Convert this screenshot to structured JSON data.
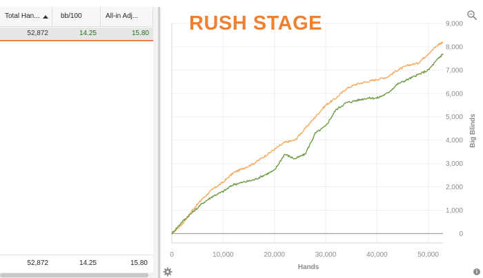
{
  "table": {
    "columns": [
      "Total Han...",
      "bb/100",
      "All-in Adj..."
    ],
    "row": [
      "52,872",
      "14.25",
      "15.80"
    ],
    "footer": [
      "52,872",
      "14.25",
      "15.80"
    ]
  },
  "icons": {
    "sort": "sort-ascending-icon",
    "zoom": "zoom-icon",
    "settings": "gear-icon",
    "info": "info-icon"
  },
  "colors": {
    "accent_orange": "#f08030",
    "line_orange": "#f5a85a",
    "line_green": "#6f9a44",
    "positive_green": "#1f6e1f",
    "row_underline": "#ef7d52"
  },
  "chart_data": {
    "type": "line",
    "title": "RUSH STAGE",
    "xlabel": "Hands",
    "ylabel": "Big Blinds",
    "xlim": [
      0,
      52872
    ],
    "ylim": [
      -400,
      9000
    ],
    "xticks": [
      "0",
      "10,000",
      "20,000",
      "30,000",
      "40,000",
      "50,000"
    ],
    "yticks": [
      "0",
      "1,000",
      "2,000",
      "3,000",
      "4,000",
      "5,000",
      "6,000",
      "7,000",
      "8,000",
      "9,000"
    ],
    "grid": true,
    "y_axis_side": "right",
    "series": [
      {
        "color": "#f5a85a",
        "x": [
          0,
          2000,
          4000,
          6000,
          8000,
          10000,
          12000,
          14000,
          16000,
          18000,
          20000,
          22000,
          24000,
          26000,
          28000,
          30000,
          32000,
          34000,
          36000,
          38000,
          40000,
          42000,
          44000,
          46000,
          48000,
          50000,
          52000,
          52872
        ],
        "y": [
          0,
          400,
          1000,
          1500,
          1900,
          2200,
          2600,
          2800,
          3000,
          3300,
          3600,
          3900,
          4000,
          4500,
          5000,
          5500,
          5800,
          6200,
          6400,
          6500,
          6600,
          6700,
          7000,
          7200,
          7300,
          7700,
          8100,
          8200
        ]
      },
      {
        "color": "#6f9a44",
        "x": [
          0,
          2000,
          4000,
          6000,
          8000,
          10000,
          12000,
          14000,
          16000,
          18000,
          20000,
          22000,
          24000,
          26000,
          28000,
          30000,
          32000,
          34000,
          36000,
          38000,
          40000,
          42000,
          44000,
          46000,
          48000,
          50000,
          52000,
          52872
        ],
        "y": [
          0,
          500,
          900,
          1300,
          1600,
          1800,
          2100,
          2200,
          2300,
          2500,
          2700,
          3400,
          3200,
          3400,
          4300,
          4600,
          5300,
          5600,
          5700,
          5800,
          5800,
          6000,
          6400,
          6600,
          6800,
          7000,
          7500,
          7700
        ]
      }
    ]
  }
}
